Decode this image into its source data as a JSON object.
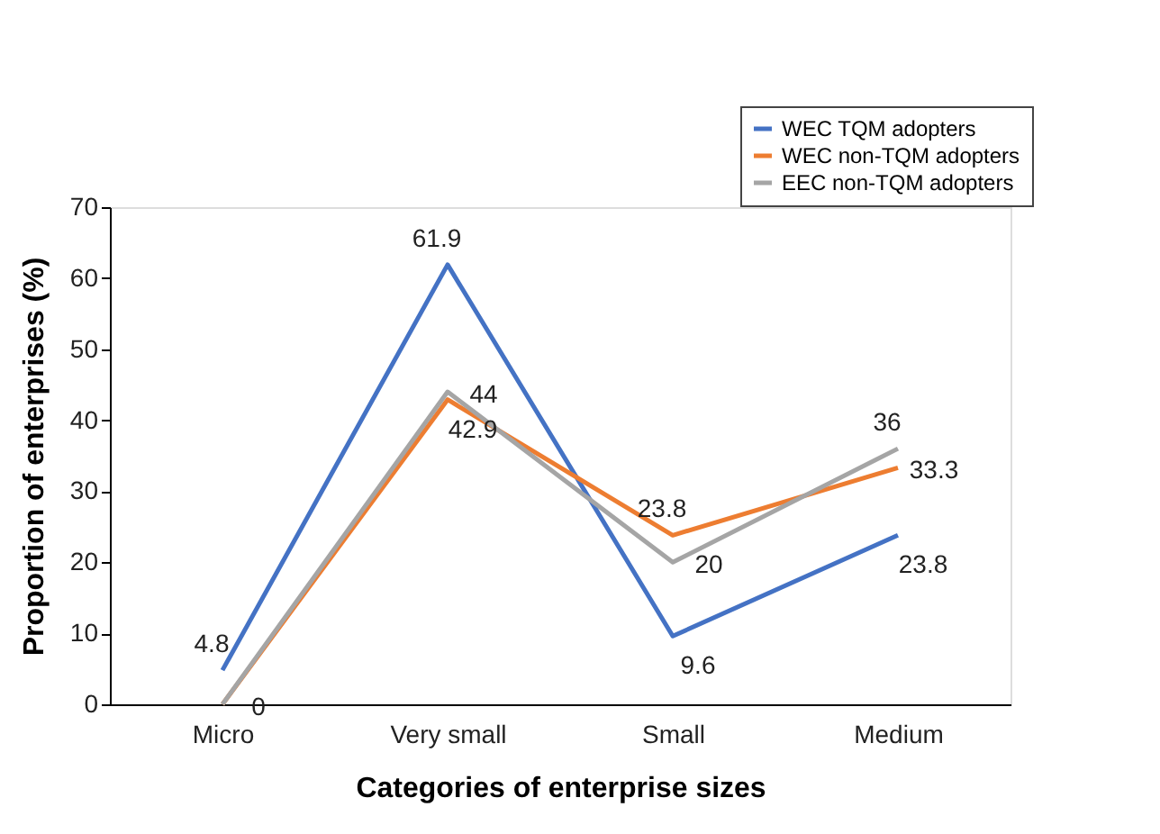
{
  "chart_data": {
    "type": "line",
    "xlabel": "Categories of enterprise sizes",
    "ylabel": "Proportion of enterprises (%)",
    "categories": [
      "Micro",
      "Very small",
      "Small",
      "Medium"
    ],
    "ylim": [
      0,
      70
    ],
    "yticks": [
      0,
      10,
      20,
      30,
      40,
      50,
      60,
      70
    ],
    "series": [
      {
        "name": "WEC TQM adopters",
        "color": "#4472c4",
        "values": [
          4.8,
          61.9,
          9.6,
          23.8
        ],
        "value_labels": [
          "4.8",
          "61.9",
          "9.6",
          "23.8"
        ]
      },
      {
        "name": "WEC non-TQM adopters",
        "color": "#ed7d31",
        "values": [
          0,
          42.9,
          23.8,
          33.3
        ],
        "value_labels": [
          "0",
          "42.9",
          "23.8",
          "33.3"
        ]
      },
      {
        "name": "EEC non-TQM adopters",
        "color": "#a5a5a5",
        "values": [
          0,
          44,
          20,
          36
        ],
        "value_labels": [
          null,
          "44",
          "20",
          "36"
        ]
      }
    ],
    "legend": "top right",
    "grid": false,
    "marker": "none",
    "line_style": "solid"
  }
}
